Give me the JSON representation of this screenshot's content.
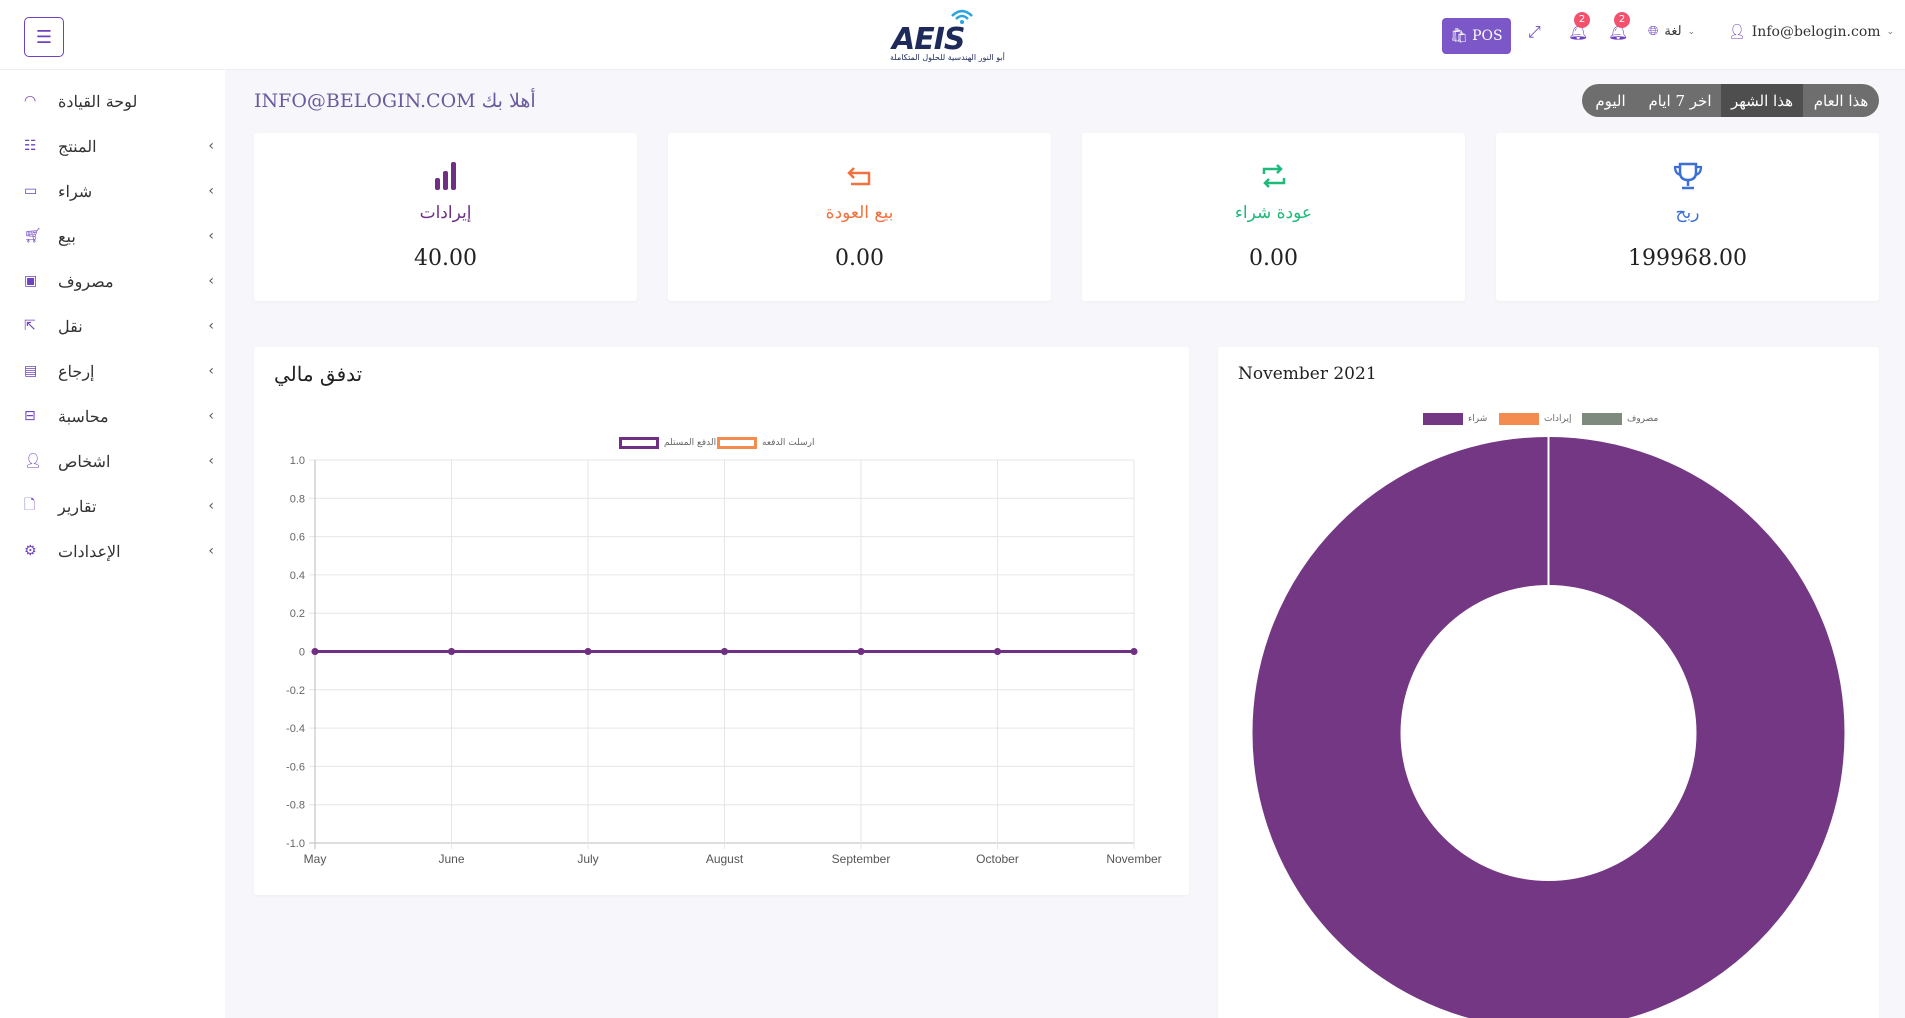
{
  "header": {
    "pos_label": "POS",
    "notif1_count": "2",
    "notif2_count": "2",
    "language_label": "لغة",
    "user_label": "Info@belogin.com",
    "logo_text": "AEIS",
    "logo_subtitle": "أبو النور الهندسية للحلول المتكاملة"
  },
  "sidebar": {
    "items": [
      {
        "label": "لوحة القيادة",
        "icon": "dashboard-icon"
      },
      {
        "label": "المنتج",
        "icon": "list-icon"
      },
      {
        "label": "شراء",
        "icon": "card-icon"
      },
      {
        "label": "بيع",
        "icon": "cart-icon"
      },
      {
        "label": "مصروف",
        "icon": "wallet-icon"
      },
      {
        "label": "نقل",
        "icon": "share-icon"
      },
      {
        "label": "إرجاع",
        "icon": "archive-icon"
      },
      {
        "label": "محاسبة",
        "icon": "briefcase-icon"
      },
      {
        "label": "اشخاص",
        "icon": "user-icon"
      },
      {
        "label": "تقارير",
        "icon": "document-icon"
      },
      {
        "label": "الإعدادات",
        "icon": "gear-icon"
      }
    ]
  },
  "greeting": "INFO@BELOGIN.COM أهلا بك",
  "tabs": [
    "هذا العام",
    "هذا الشهر",
    "اخر 7 ايام",
    "اليوم"
  ],
  "active_tab": "هذا الشهر",
  "stats": [
    {
      "title": "إيرادات",
      "value": "40.00",
      "color": "#6f2f85",
      "icon": "bar-chart-icon"
    },
    {
      "title": "بيع العودة",
      "value": "0.00",
      "color": "#f0733f",
      "icon": "return-arrow-icon"
    },
    {
      "title": "عودة شراء",
      "value": "0.00",
      "color": "#1fb97a",
      "icon": "repeat-icon"
    },
    {
      "title": "ربح",
      "value": "199968.00",
      "color": "#3b6fd6",
      "icon": "trophy-icon"
    }
  ],
  "cashflow": {
    "title": "تدفق مالي"
  },
  "donut_panel": {
    "title": "November 2021"
  },
  "chart_data": [
    {
      "type": "line",
      "title": "تدفق مالي",
      "x": [
        "May",
        "June",
        "July",
        "August",
        "September",
        "October",
        "November"
      ],
      "series": [
        {
          "name": "الدفع المستلم",
          "values": [
            0,
            0,
            0,
            0,
            0,
            0,
            0
          ],
          "color": "#6f2f85"
        },
        {
          "name": "ارسلت الدفعه",
          "values": [
            0,
            0,
            0,
            0,
            0,
            0,
            0
          ],
          "color": "#f58c4f"
        }
      ],
      "ylim": [
        -1.0,
        1.0
      ],
      "yticks": [
        "1.0",
        "0.8",
        "0.6",
        "0.4",
        "0.2",
        "0",
        "-0.2",
        "-0.4",
        "-0.6",
        "-0.8",
        "-1.0"
      ],
      "grid": true,
      "legend": "top"
    },
    {
      "type": "pie",
      "title": "November 2021",
      "categories": [
        "شراء",
        "إيرادات",
        "مصروف"
      ],
      "values": [
        100,
        0,
        0
      ],
      "colors": [
        "#733784",
        "#f58c4f",
        "#7f8a7f"
      ],
      "legend": "top"
    }
  ]
}
